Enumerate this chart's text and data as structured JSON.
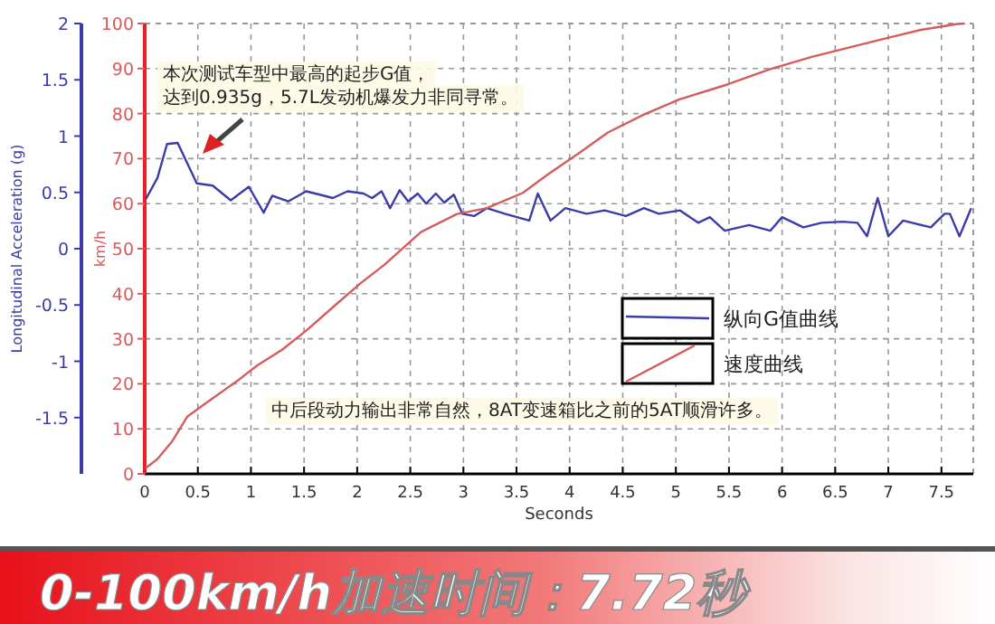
{
  "chart_data": {
    "type": "line",
    "title": "0-100km/h加速时间：7.72秒",
    "xlabel": "Seconds",
    "ylabel": "km/h",
    "y2label": "Longitudinal Acceleration (g)",
    "annotations": [
      "本次测试车型中最高的起步G值，",
      "达到0.935g，5.7L发动机爆发力非同寻常。",
      "中后段动力输出非常自然，8AT变速箱比之前的5AT顺滑许多。"
    ],
    "xlim": [
      0,
      7.8
    ],
    "xticks": [
      0,
      0.5,
      1,
      1.5,
      2,
      2.5,
      3,
      3.5,
      4,
      4.5,
      5,
      5.5,
      6,
      6.5,
      7,
      7.5
    ],
    "ylim": [
      0,
      100
    ],
    "yticks": [
      0,
      10,
      20,
      30,
      40,
      50,
      60,
      70,
      80,
      90,
      100
    ],
    "y2lim": [
      -2,
      2
    ],
    "y2ticks": [
      -1.5,
      -1,
      -0.5,
      0,
      0.5,
      1,
      1.5,
      2
    ],
    "grid": true,
    "legend": "right",
    "line_style": "solid",
    "series": [
      {
        "name": "纵向G值曲线",
        "color": "#3c3ca8",
        "axis": "y2",
        "x": [
          0.01,
          0.12,
          0.21,
          0.31,
          0.49,
          0.64,
          0.81,
          0.98,
          1.12,
          1.2,
          1.35,
          1.52,
          1.69,
          1.77,
          1.91,
          2.06,
          2.14,
          2.23,
          2.31,
          2.4,
          2.48,
          2.57,
          2.65,
          2.74,
          2.82,
          2.91,
          2.99,
          3.1,
          3.22,
          3.39,
          3.62,
          3.7,
          3.82,
          3.96,
          4.16,
          4.33,
          4.53,
          4.7,
          4.84,
          5.04,
          5.21,
          5.32,
          5.46,
          5.69,
          5.89,
          6.0,
          6.2,
          6.37,
          6.57,
          6.71,
          6.8,
          6.9,
          7.0,
          7.14,
          7.4,
          7.53,
          7.58,
          7.67,
          7.78
        ],
        "values": [
          0.44,
          0.63,
          0.93,
          0.94,
          0.58,
          0.56,
          0.43,
          0.55,
          0.32,
          0.47,
          0.42,
          0.51,
          0.47,
          0.45,
          0.51,
          0.49,
          0.45,
          0.51,
          0.36,
          0.52,
          0.42,
          0.49,
          0.4,
          0.49,
          0.41,
          0.48,
          0.31,
          0.29,
          0.36,
          0.31,
          0.25,
          0.49,
          0.25,
          0.36,
          0.31,
          0.34,
          0.29,
          0.36,
          0.31,
          0.34,
          0.23,
          0.28,
          0.16,
          0.21,
          0.16,
          0.28,
          0.19,
          0.23,
          0.24,
          0.23,
          0.11,
          0.45,
          0.11,
          0.25,
          0.19,
          0.31,
          0.31,
          0.11,
          0.36
        ]
      },
      {
        "name": "速度曲线",
        "color": "#d45c5c",
        "x": [
          0.01,
          0.12,
          0.26,
          0.4,
          0.6,
          0.88,
          1.06,
          1.29,
          1.52,
          1.8,
          2.03,
          2.25,
          2.6,
          2.94,
          3.22,
          3.56,
          3.79,
          4.08,
          4.36,
          4.7,
          5.04,
          5.49,
          5.89,
          6.28,
          6.62,
          6.96,
          7.31,
          7.65,
          7.72
        ],
        "values": [
          1.3,
          3.3,
          7.3,
          12.7,
          16.1,
          20.8,
          24.1,
          27.5,
          31.8,
          37.6,
          42.3,
          46.3,
          53.7,
          57.7,
          59.0,
          62.4,
          66.4,
          71.1,
          75.8,
          79.8,
          83.2,
          86.5,
          89.9,
          92.6,
          94.6,
          96.6,
          98.6,
          99.9,
          100
        ]
      }
    ]
  }
}
